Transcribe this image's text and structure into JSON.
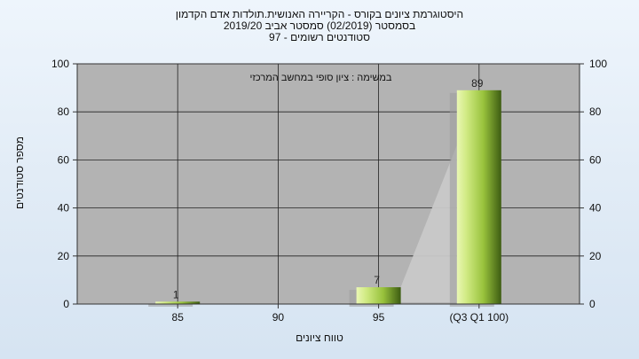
{
  "chart_data": {
    "type": "bar",
    "title_lines": [
      "היסטוגרמת ציונים בקורס - הקריירה האנושית.תולדות אדם הקדמון",
      "בסמסטר  (02/2019)  סמסטר אביב 2019/20",
      "סטודנטים רשומים - 97"
    ],
    "annotation": "במשימה : ציון סופי במחשב המרכזי",
    "categories": [
      "85",
      "90",
      "95",
      "(Q3 Q1 100)"
    ],
    "values": [
      1,
      0,
      7,
      89
    ],
    "data_labels": [
      "1",
      "",
      "7",
      "89"
    ],
    "xlabel": "טווח ציונים",
    "ylabel": "מספר סטודנטים",
    "ylim": [
      0,
      100
    ],
    "yticks": [
      0,
      20,
      40,
      60,
      80,
      100
    ],
    "grid": true,
    "colors": {
      "bar_light": "#d8f08a",
      "bar_mid": "#98c23c",
      "bar_dark": "#3d5c12",
      "plot_bg": "#b3b3b3",
      "shadow": "#c9c9c9"
    }
  }
}
